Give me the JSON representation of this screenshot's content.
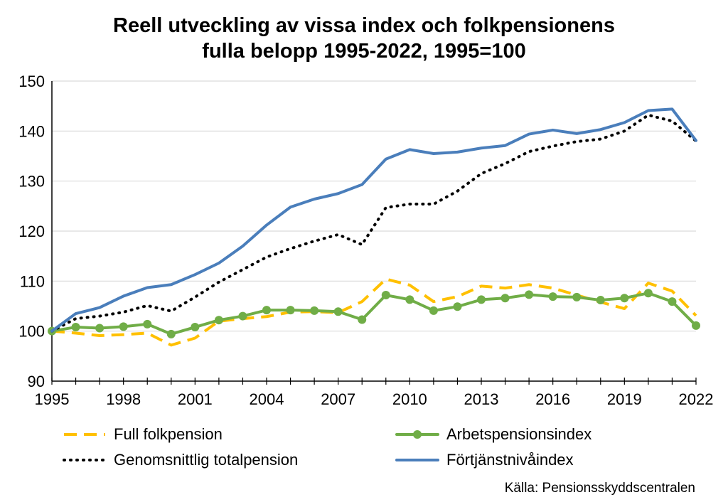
{
  "title": {
    "line1": "Reell utveckling av vissa index och folkpensionens",
    "line2": "fulla belopp 1995-2022, 1995=100"
  },
  "source": "Källa: Pensionsskyddscentralen",
  "chart_data": {
    "type": "line",
    "title": "Reell utveckling av vissa index och folkpensionens fulla belopp 1995-2022, 1995=100",
    "xlabel": "",
    "ylabel": "",
    "x": [
      1995,
      1996,
      1997,
      1998,
      1999,
      2000,
      2001,
      2002,
      2003,
      2004,
      2005,
      2006,
      2007,
      2008,
      2009,
      2010,
      2011,
      2012,
      2013,
      2014,
      2015,
      2016,
      2017,
      2018,
      2019,
      2020,
      2021,
      2022
    ],
    "xticks": [
      "1995",
      "1998",
      "2001",
      "2004",
      "2007",
      "2010",
      "2013",
      "2016",
      "2019",
      "2022"
    ],
    "yticks": [
      "90",
      "100",
      "110",
      "120",
      "130",
      "140",
      "150"
    ],
    "xlim": [
      1995,
      2022
    ],
    "ylim": [
      90,
      150
    ],
    "grid": "horizontal",
    "legend": "bottom",
    "series": [
      {
        "name": "Full folkpension",
        "style": "dashed",
        "color": "#FFC000",
        "values": [
          100,
          99.6,
          99.1,
          99.3,
          99.6,
          97.2,
          98.6,
          102.0,
          102.5,
          102.9,
          103.8,
          103.9,
          103.7,
          105.9,
          110.4,
          109.2,
          105.9,
          106.9,
          109.0,
          108.6,
          109.3,
          108.6,
          107.2,
          105.8,
          104.5,
          109.6,
          108.0,
          103.1
        ]
      },
      {
        "name": "Arbetspensionsindex",
        "style": "solid-markers",
        "color": "#70AD47",
        "values": [
          100,
          100.8,
          100.6,
          100.9,
          101.4,
          99.4,
          100.8,
          102.2,
          103.0,
          104.2,
          104.2,
          104.1,
          103.9,
          102.3,
          107.2,
          106.3,
          104.1,
          104.9,
          106.3,
          106.6,
          107.3,
          106.9,
          106.8,
          106.2,
          106.6,
          107.6,
          105.9,
          101.1
        ]
      },
      {
        "name": "Genomsnittlig totalpension",
        "style": "dotted",
        "color": "#000000",
        "values": [
          100,
          102.5,
          103.0,
          103.8,
          105.1,
          104.0,
          106.8,
          109.8,
          112.3,
          114.8,
          116.5,
          118.0,
          119.3,
          117.3,
          124.7,
          125.4,
          125.4,
          128.0,
          131.5,
          133.5,
          135.9,
          137.0,
          137.9,
          138.4,
          140.0,
          143.2,
          142.0,
          138.0
        ]
      },
      {
        "name": "Förtjänstnivåindex",
        "style": "solid",
        "color": "#4A7EBB",
        "values": [
          100,
          103.5,
          104.7,
          107.0,
          108.7,
          109.3,
          111.3,
          113.6,
          117.0,
          121.2,
          124.8,
          126.4,
          127.5,
          129.3,
          134.4,
          136.3,
          135.5,
          135.8,
          136.6,
          137.1,
          139.4,
          140.2,
          139.5,
          140.3,
          141.7,
          144.1,
          144.4,
          138.1
        ]
      }
    ]
  }
}
